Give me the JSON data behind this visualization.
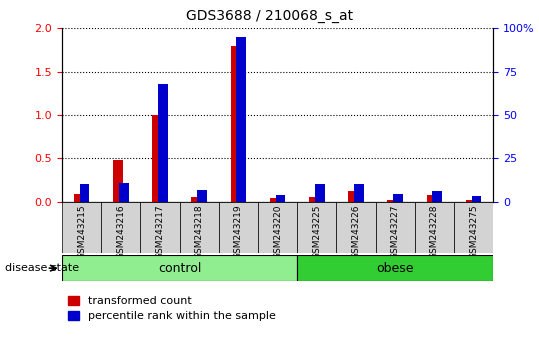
{
  "title": "GDS3688 / 210068_s_at",
  "samples": [
    "GSM243215",
    "GSM243216",
    "GSM243217",
    "GSM243218",
    "GSM243219",
    "GSM243220",
    "GSM243225",
    "GSM243226",
    "GSM243227",
    "GSM243228",
    "GSM243275"
  ],
  "transformed_count": [
    0.09,
    0.48,
    1.0,
    0.06,
    1.8,
    0.04,
    0.06,
    0.12,
    0.02,
    0.08,
    0.02
  ],
  "percentile_rank_scaled": [
    0.2,
    0.22,
    1.36,
    0.14,
    1.9,
    0.08,
    0.2,
    0.2,
    0.09,
    0.13,
    0.07
  ],
  "groups": [
    {
      "label": "control",
      "n": 6,
      "color": "#90EE90"
    },
    {
      "label": "obese",
      "n": 5,
      "color": "#32CD32"
    }
  ],
  "ylim_left": [
    0,
    2
  ],
  "ylim_right": [
    0,
    100
  ],
  "left_ticks": [
    0,
    0.5,
    1.0,
    1.5,
    2.0
  ],
  "right_ticks": [
    0,
    25,
    50,
    75,
    100
  ],
  "bar_color_red": "#CC0000",
  "bar_color_blue": "#0000CC",
  "bg_color": "#D3D3D3",
  "title_fontsize": 10,
  "legend_red": "transformed count",
  "legend_blue": "percentile rank within the sample",
  "disease_state_label": "disease state"
}
